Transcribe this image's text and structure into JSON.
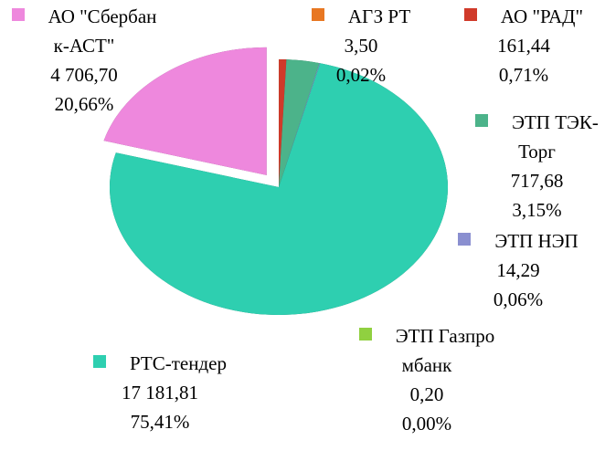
{
  "chart_data": {
    "type": "pie",
    "categories": [
      "АО \"Сбербанк-АСТ\"",
      "АГЗ РТ",
      "АО \"РАД\"",
      "ЭТП ТЭК-Торг",
      "ЭТП НЭП",
      "ЭТП Газпромбанк",
      "РТС-тендер"
    ],
    "values": [
      4706.7,
      3.5,
      161.44,
      717.68,
      14.29,
      0.2,
      17181.81
    ],
    "value_labels": [
      "4 706,70",
      "3,50",
      "161,44",
      "717,68",
      "14,29",
      "0,20",
      "17 181,81"
    ],
    "percents": [
      20.66,
      0.02,
      0.71,
      3.15,
      0.06,
      0.0,
      75.41
    ],
    "percent_labels": [
      "20,66%",
      "0,02%",
      "0,71%",
      "3,15%",
      "0,06%",
      "0,00%",
      "75,41%"
    ],
    "colors": [
      "#ee88dd",
      "#e87722",
      "#d03a2a",
      "#4cb38a",
      "#8a8fd0",
      "#90d040",
      "#2ecfb0"
    ]
  }
}
